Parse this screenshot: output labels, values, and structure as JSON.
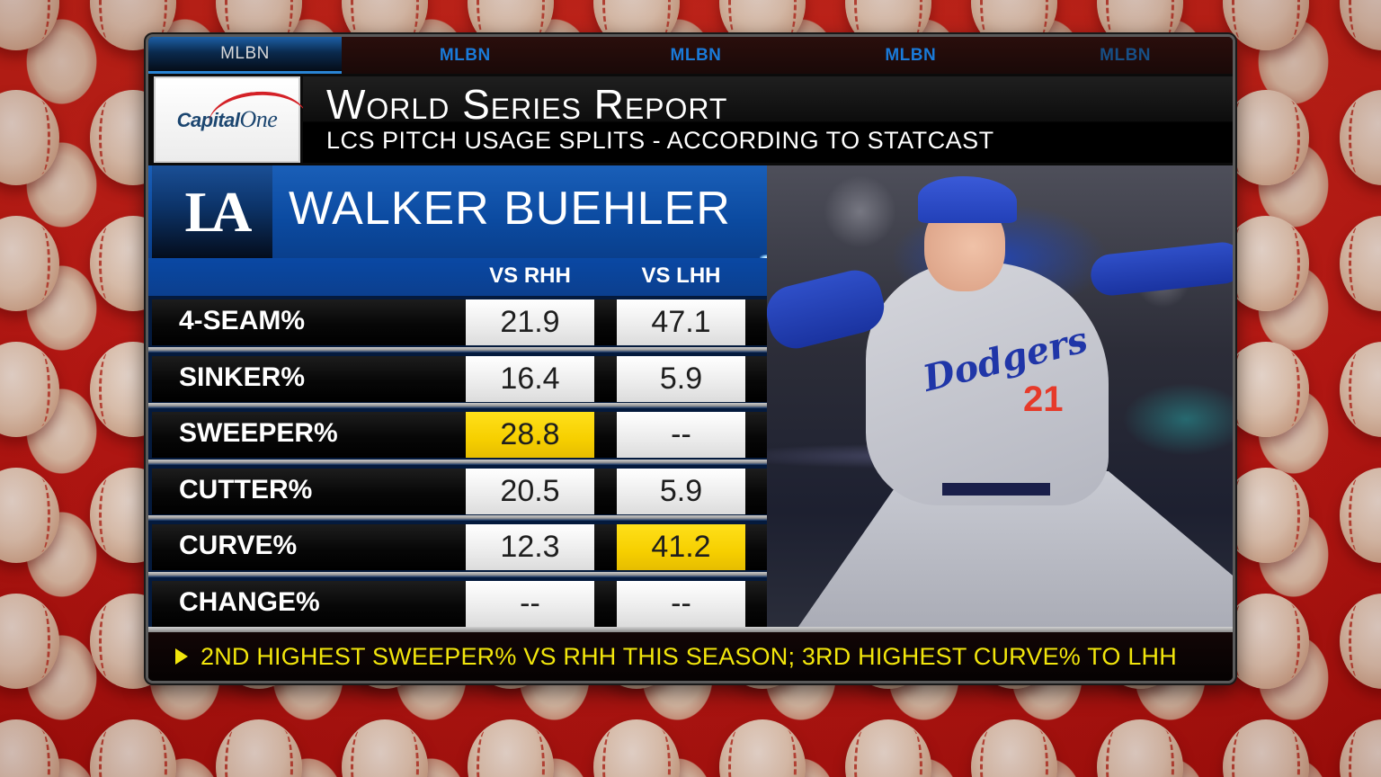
{
  "network": {
    "tabs": [
      {
        "label": "MLBN",
        "active": true
      },
      {
        "label": "MLBN",
        "active": false
      },
      {
        "label": "MLBN",
        "active": false
      },
      {
        "label": "MLBN",
        "active": false
      },
      {
        "label": "MLBN",
        "active": false
      }
    ]
  },
  "sponsor": {
    "name_bold": "Capital",
    "name_light": "One"
  },
  "header": {
    "title": "World Series Report",
    "subtitle": "LCS PITCH USAGE SPLITS - ACCORDING TO STATCAST"
  },
  "player": {
    "team_logo": "LA",
    "name": "WALKER BUEHLER",
    "jersey_script": "Dodgers",
    "jersey_number": "21"
  },
  "table": {
    "columns": [
      "VS RHH",
      "VS LHH"
    ],
    "rows": [
      {
        "label": "4-SEAM%",
        "rhh": "21.9",
        "lhh": "47.1",
        "rhh_highlight": false,
        "lhh_highlight": false
      },
      {
        "label": "SINKER%",
        "rhh": "16.4",
        "lhh": "5.9",
        "rhh_highlight": false,
        "lhh_highlight": false
      },
      {
        "label": "SWEEPER%",
        "rhh": "28.8",
        "lhh": "--",
        "rhh_highlight": true,
        "lhh_highlight": false
      },
      {
        "label": "CUTTER%",
        "rhh": "20.5",
        "lhh": "5.9",
        "rhh_highlight": false,
        "lhh_highlight": false
      },
      {
        "label": "CURVE%",
        "rhh": "12.3",
        "lhh": "41.2",
        "rhh_highlight": false,
        "lhh_highlight": true
      },
      {
        "label": "CHANGE%",
        "rhh": "--",
        "lhh": "--",
        "rhh_highlight": false,
        "lhh_highlight": false
      }
    ]
  },
  "footer": {
    "note": "2ND HIGHEST SWEEPER% VS RHH THIS SEASON; 3RD HIGHEST CURVE% TO LHH"
  },
  "colors": {
    "highlight": "#f6cf00",
    "team_blue": "#0b4aa0",
    "note_yellow": "#f2e60c",
    "tab_blue": "#1a7ad8",
    "background_red": "#c8180f"
  }
}
